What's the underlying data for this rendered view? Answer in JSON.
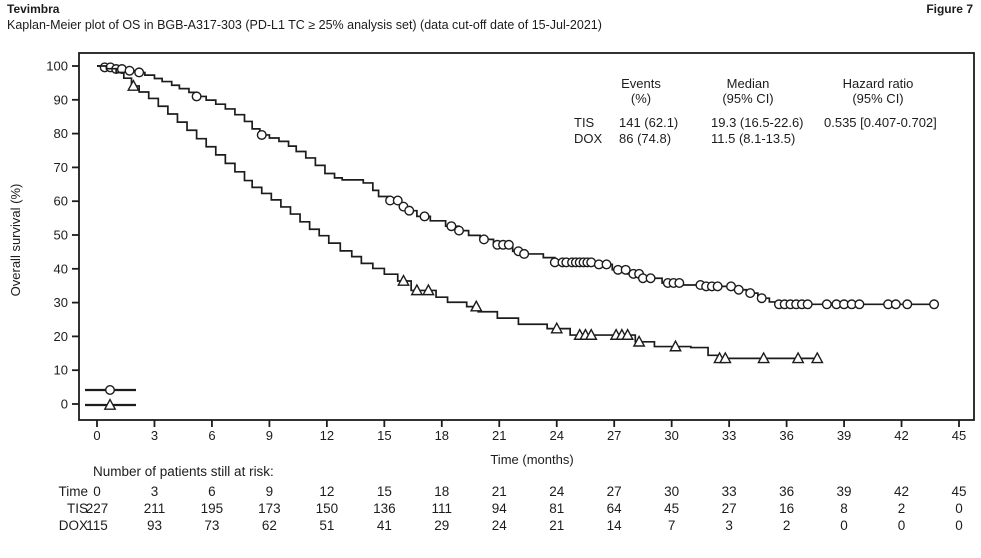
{
  "header": {
    "product": "Tevimbra",
    "figure_label": "Figure 7",
    "subtitle": "Kaplan-Meier plot of OS in BGB-A317-303 (PD-L1 TC ≥ 25% analysis set) (data cut-off date of 15-Jul-2021)"
  },
  "colors": {
    "ink": "#1c1c1c",
    "background": "#ffffff"
  },
  "chart_data": {
    "type": "line",
    "subtype": "kaplan-meier-step",
    "xlabel": "Time (months)",
    "ylabel": "Overall survival (%)",
    "xlim": [
      0,
      45
    ],
    "ylim": [
      0,
      100
    ],
    "xticks": [
      0,
      3,
      6,
      9,
      12,
      15,
      18,
      21,
      24,
      27,
      30,
      33,
      36,
      39,
      42,
      45
    ],
    "yticks": [
      0,
      10,
      20,
      30,
      40,
      50,
      60,
      70,
      80,
      90,
      100
    ],
    "grid": false,
    "legend": {
      "position": "bottom-left-inside",
      "entries": [
        {
          "name": "TIS",
          "marker": "circle"
        },
        {
          "name": "DOX",
          "marker": "triangle"
        }
      ]
    },
    "series": [
      {
        "name": "TIS",
        "marker": "circle",
        "steps": [
          [
            0,
            100
          ],
          [
            0.4,
            99.6
          ],
          [
            0.9,
            99.1
          ],
          [
            1.4,
            98.6
          ],
          [
            2.0,
            98.1
          ],
          [
            2.5,
            97.3
          ],
          [
            3.0,
            96.3
          ],
          [
            3.4,
            95.4
          ],
          [
            3.9,
            94.3
          ],
          [
            4.3,
            93.3
          ],
          [
            4.8,
            92.2
          ],
          [
            5.2,
            91.0
          ],
          [
            5.7,
            89.9
          ],
          [
            6.2,
            88.7
          ],
          [
            6.7,
            87.3
          ],
          [
            7.2,
            85.6
          ],
          [
            7.7,
            83.6
          ],
          [
            8.1,
            81.4
          ],
          [
            8.5,
            79.6
          ],
          [
            9.0,
            78.7
          ],
          [
            9.5,
            77.7
          ],
          [
            10.0,
            76.3
          ],
          [
            10.4,
            74.7
          ],
          [
            10.9,
            72.8
          ],
          [
            11.4,
            70.6
          ],
          [
            11.9,
            68.2
          ],
          [
            12.4,
            66.9
          ],
          [
            12.8,
            66.3
          ],
          [
            13.9,
            65.4
          ],
          [
            14.4,
            63.2
          ],
          [
            14.7,
            61.4
          ],
          [
            15.3,
            60.2
          ],
          [
            15.8,
            58.4
          ],
          [
            16.2,
            57.2
          ],
          [
            16.7,
            55.5
          ],
          [
            17.4,
            54.2
          ],
          [
            18.2,
            52.6
          ],
          [
            18.9,
            51.3
          ],
          [
            19.4,
            49.9
          ],
          [
            20.0,
            48.7
          ],
          [
            20.7,
            47.1
          ],
          [
            21.7,
            45.2
          ],
          [
            22.3,
            44.4
          ],
          [
            23.3,
            43.3
          ],
          [
            23.9,
            41.9
          ],
          [
            26.1,
            41.3
          ],
          [
            26.9,
            39.7
          ],
          [
            27.7,
            38.5
          ],
          [
            28.4,
            37.2
          ],
          [
            29.5,
            35.8
          ],
          [
            30.6,
            35.2
          ],
          [
            31.8,
            34.8
          ],
          [
            33.2,
            33.8
          ],
          [
            33.9,
            32.8
          ],
          [
            34.5,
            31.3
          ],
          [
            35.1,
            30.2
          ],
          [
            35.6,
            29.5
          ],
          [
            43.7,
            29.5
          ]
        ],
        "censor_times": [
          0.4,
          0.7,
          1.0,
          1.3,
          1.7,
          2.2,
          5.2,
          8.6,
          15.3,
          15.7,
          16.0,
          16.3,
          17.1,
          18.5,
          18.9,
          20.2,
          20.9,
          21.2,
          21.5,
          22.0,
          22.3,
          23.9,
          24.3,
          24.5,
          24.8,
          25.0,
          25.2,
          25.4,
          25.6,
          25.8,
          26.2,
          26.6,
          27.2,
          27.6,
          28.0,
          28.3,
          28.5,
          28.9,
          29.8,
          30.1,
          30.4,
          31.5,
          31.8,
          32.1,
          32.4,
          33.1,
          33.5,
          34.1,
          34.7,
          35.6,
          35.9,
          36.2,
          36.5,
          36.8,
          37.1,
          38.1,
          38.6,
          39.0,
          39.4,
          39.8,
          41.3,
          41.7,
          42.3,
          43.7
        ]
      },
      {
        "name": "DOX",
        "marker": "triangle",
        "steps": [
          [
            0,
            100
          ],
          [
            0.5,
            99.2
          ],
          [
            1.0,
            98.1
          ],
          [
            1.4,
            96.4
          ],
          [
            1.8,
            94.1
          ],
          [
            2.2,
            92.3
          ],
          [
            2.7,
            90.4
          ],
          [
            3.2,
            88.1
          ],
          [
            3.7,
            85.8
          ],
          [
            4.2,
            83.4
          ],
          [
            4.7,
            81.0
          ],
          [
            5.2,
            78.5
          ],
          [
            5.7,
            76.1
          ],
          [
            6.2,
            73.7
          ],
          [
            6.7,
            71.2
          ],
          [
            7.2,
            68.7
          ],
          [
            7.7,
            66.1
          ],
          [
            8.1,
            64.1
          ],
          [
            8.6,
            62.3
          ],
          [
            9.1,
            60.4
          ],
          [
            9.6,
            58.3
          ],
          [
            10.1,
            56.2
          ],
          [
            10.6,
            53.9
          ],
          [
            11.1,
            51.7
          ],
          [
            11.6,
            49.8
          ],
          [
            12.1,
            47.6
          ],
          [
            12.7,
            45.3
          ],
          [
            13.3,
            43.6
          ],
          [
            13.8,
            41.6
          ],
          [
            14.4,
            40.1
          ],
          [
            15.0,
            38.4
          ],
          [
            15.7,
            36.4
          ],
          [
            16.4,
            33.6
          ],
          [
            17.7,
            31.6
          ],
          [
            18.3,
            30.1
          ],
          [
            19.3,
            28.8
          ],
          [
            19.9,
            27.3
          ],
          [
            20.9,
            25.4
          ],
          [
            22.0,
            23.6
          ],
          [
            23.5,
            22.3
          ],
          [
            24.7,
            20.4
          ],
          [
            28.1,
            18.4
          ],
          [
            29.1,
            17.0
          ],
          [
            31.0,
            16.7
          ],
          [
            31.9,
            14.4
          ],
          [
            32.4,
            13.5
          ],
          [
            37.6,
            13.5
          ]
        ],
        "censor_times": [
          1.9,
          16.0,
          16.7,
          17.3,
          19.8,
          24.0,
          25.2,
          25.5,
          25.8,
          27.1,
          27.4,
          27.7,
          28.3,
          30.2,
          32.5,
          32.8,
          34.8,
          36.6,
          37.6
        ]
      }
    ],
    "stats_table": {
      "col_headers": [
        {
          "line1": "Events",
          "line2": "(%)"
        },
        {
          "line1": "Median",
          "line2": "(95% CI)"
        },
        {
          "line1": "Hazard ratio",
          "line2": "(95% CI)"
        }
      ],
      "rows": [
        {
          "label": "TIS",
          "events": "141 (62.1)",
          "median": "19.3 (16.5-22.6)",
          "hazard_ratio": "0.535 [0.407-0.702]"
        },
        {
          "label": "DOX",
          "events": "86 (74.8)",
          "median": "11.5 (8.1-13.5)",
          "hazard_ratio": ""
        }
      ]
    },
    "risk_table": {
      "caption": "Number of patients still at risk:",
      "rows": [
        {
          "label": "Time",
          "values": [
            "0",
            "3",
            "6",
            "9",
            "12",
            "15",
            "18",
            "21",
            "24",
            "27",
            "30",
            "33",
            "36",
            "39",
            "42",
            "45"
          ]
        },
        {
          "label": "TIS",
          "values": [
            "227",
            "211",
            "195",
            "173",
            "150",
            "136",
            "111",
            "94",
            "81",
            "64",
            "45",
            "27",
            "16",
            "8",
            "2",
            "0"
          ]
        },
        {
          "label": "DOX",
          "values": [
            "115",
            "93",
            "73",
            "62",
            "51",
            "41",
            "29",
            "24",
            "21",
            "14",
            "7",
            "3",
            "2",
            "0",
            "0",
            "0"
          ]
        }
      ]
    }
  }
}
